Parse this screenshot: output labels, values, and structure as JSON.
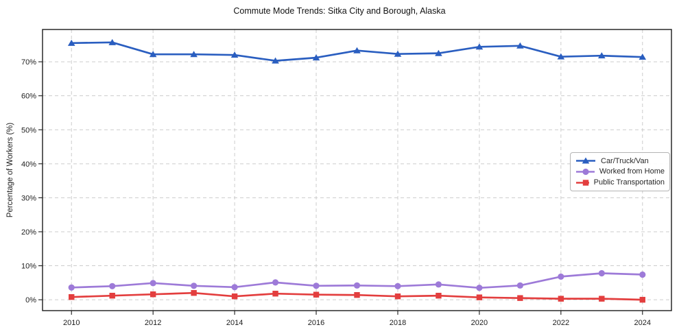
{
  "chart_data": {
    "type": "line",
    "title": "Commute Mode Trends: Sitka City and Borough, Alaska",
    "xlabel": "",
    "ylabel": "Percentage of Workers (%)",
    "x": [
      2010,
      2011,
      2012,
      2013,
      2014,
      2015,
      2016,
      2017,
      2018,
      2019,
      2020,
      2021,
      2022,
      2023,
      2024
    ],
    "series": [
      {
        "name": "Car/Truck/Van",
        "color": "#2a5ec0",
        "marker": "triangle",
        "values": [
          75.5,
          75.7,
          72.2,
          72.2,
          72.0,
          70.3,
          71.2,
          73.3,
          72.3,
          72.5,
          74.4,
          74.7,
          71.5,
          71.8,
          71.4
        ]
      },
      {
        "name": "Worked from Home",
        "color": "#9d7ad8",
        "marker": "circle",
        "values": [
          3.6,
          4.0,
          4.9,
          4.1,
          3.7,
          5.1,
          4.1,
          4.2,
          4.0,
          4.5,
          3.5,
          4.2,
          6.8,
          7.8,
          7.4
        ]
      },
      {
        "name": "Public Transportation",
        "color": "#e33e3e",
        "marker": "square",
        "values": [
          0.8,
          1.2,
          1.6,
          2.0,
          1.0,
          1.8,
          1.5,
          1.4,
          1.0,
          1.2,
          0.7,
          0.5,
          0.3,
          0.3,
          0.0
        ]
      }
    ],
    "xlim": [
      2009.29,
      2024.71
    ],
    "ylim": [
      -3.2,
      79.5
    ],
    "x_ticks": [
      2010,
      2012,
      2014,
      2016,
      2018,
      2020,
      2022,
      2024
    ],
    "y_ticks": [
      0,
      10,
      20,
      30,
      40,
      50,
      60,
      70
    ],
    "y_tick_suffix": "%",
    "grid": "dashed",
    "grid_color": "#cccccc",
    "axis_border_color": "#1a1a1a",
    "legend_position": "middle-right"
  }
}
